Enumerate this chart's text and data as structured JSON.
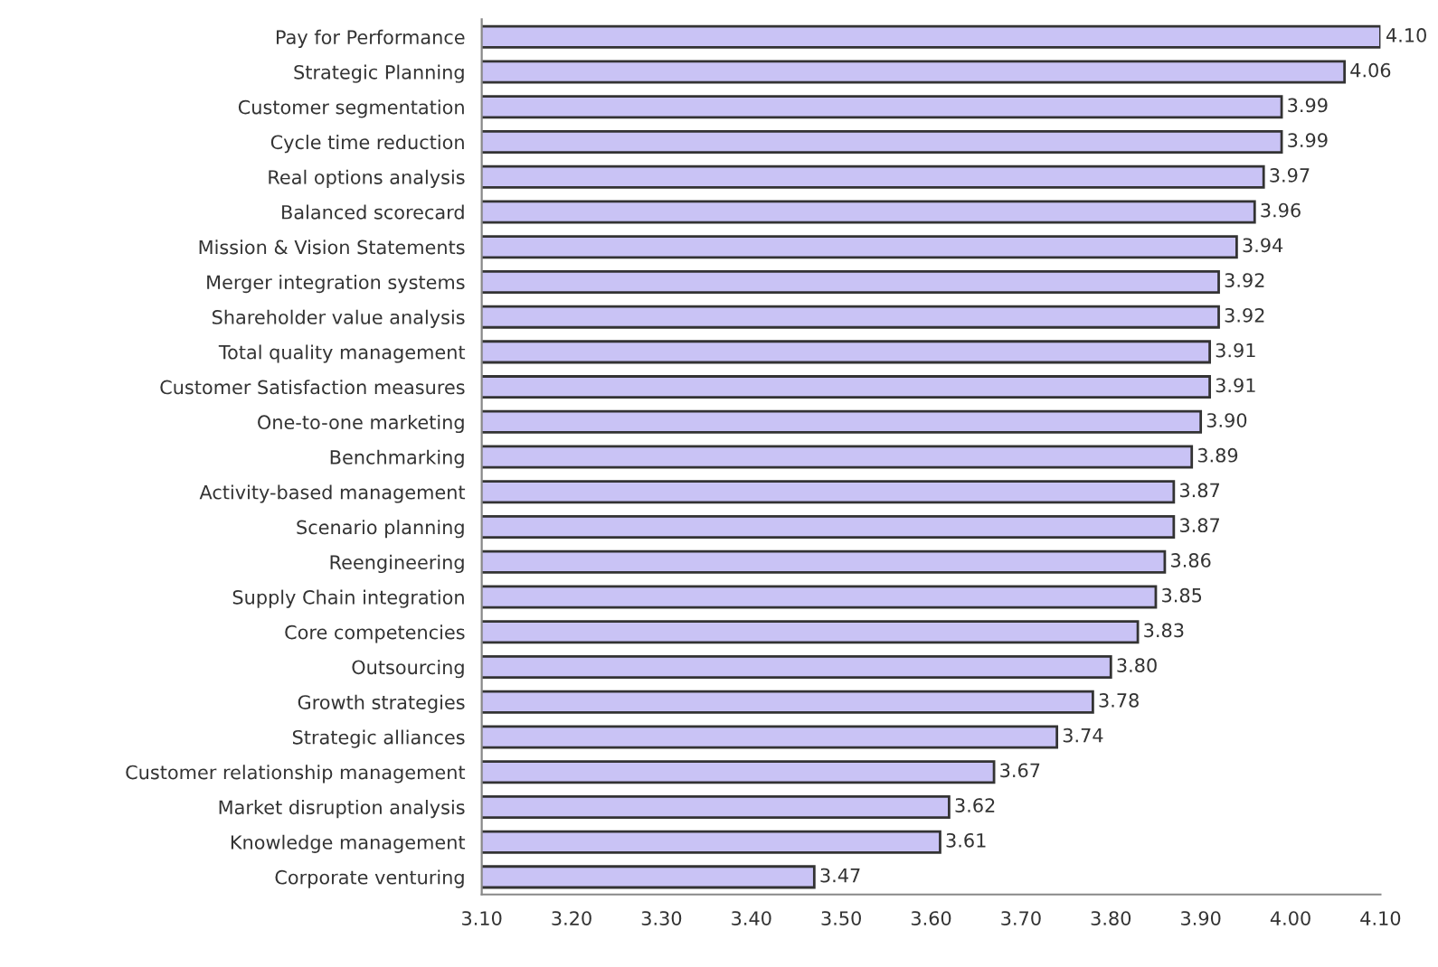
{
  "chart_data": {
    "type": "bar",
    "orientation": "horizontal",
    "categories": [
      "Pay for Performance",
      "Strategic Planning",
      "Customer segmentation",
      "Cycle time reduction",
      "Real options analysis",
      "Balanced scorecard",
      "Mission & Vision Statements",
      "Merger integration systems",
      "Shareholder value analysis",
      "Total quality management",
      "Customer Satisfaction measures",
      "One-to-one marketing",
      "Benchmarking",
      "Activity-based management",
      "Scenario planning",
      "Reengineering",
      "Supply Chain integration",
      "Core competencies",
      "Outsourcing",
      "Growth strategies",
      "Strategic alliances",
      "Customer relationship management",
      "Market disruption analysis",
      "Knowledge management",
      "Corporate venturing"
    ],
    "values": [
      4.1,
      4.06,
      3.99,
      3.99,
      3.97,
      3.96,
      3.94,
      3.92,
      3.92,
      3.91,
      3.91,
      3.9,
      3.89,
      3.87,
      3.87,
      3.86,
      3.85,
      3.83,
      3.8,
      3.78,
      3.74,
      3.67,
      3.62,
      3.61,
      3.47
    ],
    "color": "#c9c3f5",
    "value_labels": [
      "4.10",
      "4.06",
      "3.99",
      "3.99",
      "3.97",
      "3.96",
      "3.94",
      "3.92",
      "3.92",
      "3.91",
      "3.91",
      "3.90",
      "3.89",
      "3.87",
      "3.87",
      "3.86",
      "3.85",
      "3.83",
      "3.80",
      "3.78",
      "3.74",
      "3.67",
      "3.62",
      "3.61",
      "3.47"
    ],
    "xlim": [
      3.1,
      4.1
    ],
    "xticks": [
      {
        "value": 3.1,
        "label": "3.10"
      },
      {
        "value": 3.2,
        "label": "3.20"
      },
      {
        "value": 3.3,
        "label": "3.30"
      },
      {
        "value": 3.4,
        "label": "3.40"
      },
      {
        "value": 3.5,
        "label": "3.50"
      },
      {
        "value": 3.6,
        "label": "3.60"
      },
      {
        "value": 3.7,
        "label": "3.70"
      },
      {
        "value": 3.8,
        "label": "3.80"
      },
      {
        "value": 3.9,
        "label": "3.90"
      },
      {
        "value": 4.0,
        "label": "4.00"
      },
      {
        "value": 4.1,
        "label": "4.10"
      }
    ],
    "grid": false,
    "legend": false
  }
}
